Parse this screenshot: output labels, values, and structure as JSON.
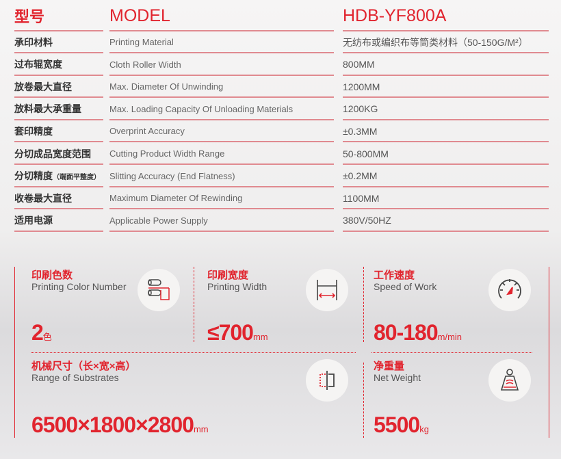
{
  "header": {
    "label_cn": "型号",
    "label_en": "MODEL",
    "value": "HDB-YF800A"
  },
  "rows": [
    {
      "cn": "承印材料",
      "en": "Printing Material",
      "value": "无纺布或编织布等筒类材料（50-150G/M²）"
    },
    {
      "cn": "过布辊宽度",
      "en": "Cloth Roller Width",
      "value": "800MM"
    },
    {
      "cn": "放卷最大直径",
      "en": "Max. Diameter Of Unwinding",
      "value": "1200MM"
    },
    {
      "cn": "放料最大承重量",
      "en": "Max. Loading Capacity Of Unloading Materials",
      "value": "1200KG"
    },
    {
      "cn": "套印精度",
      "en": "Overprint Accuracy",
      "value": "±0.3MM"
    },
    {
      "cn": "分切成品宽度范围",
      "en": "Cutting Product Width Range",
      "value": "50-800MM"
    },
    {
      "cn": "分切精度",
      "cn_note": "（端面平整度）",
      "en": "Slitting Accuracy (End Flatness)",
      "value": "±0.2MM"
    },
    {
      "cn": "收卷最大直径",
      "en": "Maximum Diameter Of Rewinding",
      "value": "1100MM"
    },
    {
      "cn": "适用电源",
      "en": "Applicable Power Supply",
      "value": "380V/50HZ"
    }
  ],
  "cards": [
    {
      "cn": "印刷色数",
      "en": "Printing Color Number",
      "value": "2",
      "unit": "色",
      "icon": "rollers-icon"
    },
    {
      "cn": "印刷宽度",
      "en": "Printing Width",
      "value": "≤700",
      "unit": "mm",
      "icon": "width-icon"
    },
    {
      "cn": "工作速度",
      "en": "Speed of Work",
      "value": "80-180",
      "unit": "m/min",
      "icon": "speedometer-icon"
    },
    {
      "cn": "机械尺寸（长×宽×高）",
      "en": "Range of Substrates",
      "value": "6500×1800×2800",
      "unit": "mm",
      "icon": "dimensions-icon"
    },
    {
      "cn": "净重量",
      "en": "Net Weight",
      "value": "5500",
      "unit": "kg",
      "icon": "weight-icon"
    }
  ],
  "colors": {
    "accent": "#e1242e",
    "text": "#333333"
  }
}
